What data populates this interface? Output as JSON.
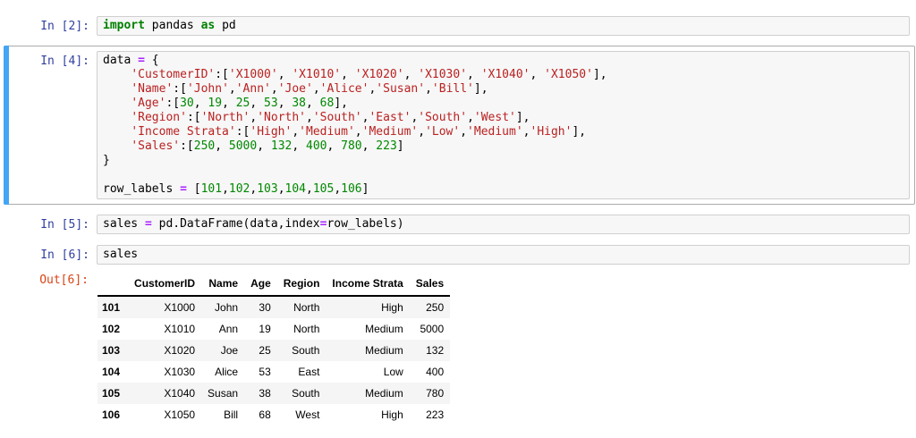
{
  "colors": {
    "in_prompt": "#303f9f",
    "out_prompt": "#d84315",
    "selected_border": "#ababab",
    "selection_bar": "#42a5f5",
    "cell_bg": "#f7f7f7",
    "cell_border": "#cfcfcf",
    "keyword": "#008000",
    "operator": "#aa22ff",
    "string": "#ba2121",
    "number": "#008800",
    "stripe": "#f5f5f5"
  },
  "cells": [
    {
      "prompt": "In [2]:",
      "selected": false,
      "lines": [
        [
          {
            "t": "import",
            "c": "kw"
          },
          {
            "t": " pandas ",
            "c": ""
          },
          {
            "t": "as",
            "c": "kw"
          },
          {
            "t": " pd",
            "c": ""
          }
        ]
      ]
    },
    {
      "prompt": "In [4]:",
      "selected": true,
      "lines": [
        [
          {
            "t": "data ",
            "c": ""
          },
          {
            "t": "=",
            "c": "op"
          },
          {
            "t": " {",
            "c": ""
          }
        ],
        [
          {
            "t": "    ",
            "c": ""
          },
          {
            "t": "'CustomerID'",
            "c": "str"
          },
          {
            "t": ":[",
            "c": ""
          },
          {
            "t": "'X1000'",
            "c": "str"
          },
          {
            "t": ", ",
            "c": ""
          },
          {
            "t": "'X1010'",
            "c": "str"
          },
          {
            "t": ", ",
            "c": ""
          },
          {
            "t": "'X1020'",
            "c": "str"
          },
          {
            "t": ", ",
            "c": ""
          },
          {
            "t": "'X1030'",
            "c": "str"
          },
          {
            "t": ", ",
            "c": ""
          },
          {
            "t": "'X1040'",
            "c": "str"
          },
          {
            "t": ", ",
            "c": ""
          },
          {
            "t": "'X1050'",
            "c": "str"
          },
          {
            "t": "],",
            "c": ""
          }
        ],
        [
          {
            "t": "    ",
            "c": ""
          },
          {
            "t": "'Name'",
            "c": "str"
          },
          {
            "t": ":[",
            "c": ""
          },
          {
            "t": "'John'",
            "c": "str"
          },
          {
            "t": ",",
            "c": ""
          },
          {
            "t": "'Ann'",
            "c": "str"
          },
          {
            "t": ",",
            "c": ""
          },
          {
            "t": "'Joe'",
            "c": "str"
          },
          {
            "t": ",",
            "c": ""
          },
          {
            "t": "'Alice'",
            "c": "str"
          },
          {
            "t": ",",
            "c": ""
          },
          {
            "t": "'Susan'",
            "c": "str"
          },
          {
            "t": ",",
            "c": ""
          },
          {
            "t": "'Bill'",
            "c": "str"
          },
          {
            "t": "],",
            "c": ""
          }
        ],
        [
          {
            "t": "    ",
            "c": ""
          },
          {
            "t": "'Age'",
            "c": "str"
          },
          {
            "t": ":[",
            "c": ""
          },
          {
            "t": "30",
            "c": "num"
          },
          {
            "t": ", ",
            "c": ""
          },
          {
            "t": "19",
            "c": "num"
          },
          {
            "t": ", ",
            "c": ""
          },
          {
            "t": "25",
            "c": "num"
          },
          {
            "t": ", ",
            "c": ""
          },
          {
            "t": "53",
            "c": "num"
          },
          {
            "t": ", ",
            "c": ""
          },
          {
            "t": "38",
            "c": "num"
          },
          {
            "t": ", ",
            "c": ""
          },
          {
            "t": "68",
            "c": "num"
          },
          {
            "t": "],",
            "c": ""
          }
        ],
        [
          {
            "t": "    ",
            "c": ""
          },
          {
            "t": "'Region'",
            "c": "str"
          },
          {
            "t": ":[",
            "c": ""
          },
          {
            "t": "'North'",
            "c": "str"
          },
          {
            "t": ",",
            "c": ""
          },
          {
            "t": "'North'",
            "c": "str"
          },
          {
            "t": ",",
            "c": ""
          },
          {
            "t": "'South'",
            "c": "str"
          },
          {
            "t": ",",
            "c": ""
          },
          {
            "t": "'East'",
            "c": "str"
          },
          {
            "t": ",",
            "c": ""
          },
          {
            "t": "'South'",
            "c": "str"
          },
          {
            "t": ",",
            "c": ""
          },
          {
            "t": "'West'",
            "c": "str"
          },
          {
            "t": "],",
            "c": ""
          }
        ],
        [
          {
            "t": "    ",
            "c": ""
          },
          {
            "t": "'Income Strata'",
            "c": "str"
          },
          {
            "t": ":[",
            "c": ""
          },
          {
            "t": "'High'",
            "c": "str"
          },
          {
            "t": ",",
            "c": ""
          },
          {
            "t": "'Medium'",
            "c": "str"
          },
          {
            "t": ",",
            "c": ""
          },
          {
            "t": "'Medium'",
            "c": "str"
          },
          {
            "t": ",",
            "c": ""
          },
          {
            "t": "'Low'",
            "c": "str"
          },
          {
            "t": ",",
            "c": ""
          },
          {
            "t": "'Medium'",
            "c": "str"
          },
          {
            "t": ",",
            "c": ""
          },
          {
            "t": "'High'",
            "c": "str"
          },
          {
            "t": "],",
            "c": ""
          }
        ],
        [
          {
            "t": "    ",
            "c": ""
          },
          {
            "t": "'Sales'",
            "c": "str"
          },
          {
            "t": ":[",
            "c": ""
          },
          {
            "t": "250",
            "c": "num"
          },
          {
            "t": ", ",
            "c": ""
          },
          {
            "t": "5000",
            "c": "num"
          },
          {
            "t": ", ",
            "c": ""
          },
          {
            "t": "132",
            "c": "num"
          },
          {
            "t": ", ",
            "c": ""
          },
          {
            "t": "400",
            "c": "num"
          },
          {
            "t": ", ",
            "c": ""
          },
          {
            "t": "780",
            "c": "num"
          },
          {
            "t": ", ",
            "c": ""
          },
          {
            "t": "223",
            "c": "num"
          },
          {
            "t": "]",
            "c": ""
          }
        ],
        [
          {
            "t": "}",
            "c": ""
          }
        ],
        [],
        [
          {
            "t": "row_labels ",
            "c": ""
          },
          {
            "t": "=",
            "c": "op"
          },
          {
            "t": " [",
            "c": ""
          },
          {
            "t": "101",
            "c": "num"
          },
          {
            "t": ",",
            "c": ""
          },
          {
            "t": "102",
            "c": "num"
          },
          {
            "t": ",",
            "c": ""
          },
          {
            "t": "103",
            "c": "num"
          },
          {
            "t": ",",
            "c": ""
          },
          {
            "t": "104",
            "c": "num"
          },
          {
            "t": ",",
            "c": ""
          },
          {
            "t": "105",
            "c": "num"
          },
          {
            "t": ",",
            "c": ""
          },
          {
            "t": "106",
            "c": "num"
          },
          {
            "t": "]",
            "c": ""
          }
        ]
      ]
    },
    {
      "prompt": "In [5]:",
      "selected": false,
      "lines": [
        [
          {
            "t": "sales ",
            "c": ""
          },
          {
            "t": "=",
            "c": "op"
          },
          {
            "t": " pd.DataFrame(data,index",
            "c": ""
          },
          {
            "t": "=",
            "c": "op"
          },
          {
            "t": "row_labels)",
            "c": ""
          }
        ]
      ]
    },
    {
      "prompt": "In [6]:",
      "selected": false,
      "lines": [
        [
          {
            "t": "sales",
            "c": ""
          }
        ]
      ]
    }
  ],
  "output": {
    "prompt": "Out[6]:",
    "table": {
      "columns": [
        "CustomerID",
        "Name",
        "Age",
        "Region",
        "Income Strata",
        "Sales"
      ],
      "rows": [
        {
          "index": "101",
          "cells": [
            "X1000",
            "John",
            "30",
            "North",
            "High",
            "250"
          ]
        },
        {
          "index": "102",
          "cells": [
            "X1010",
            "Ann",
            "19",
            "North",
            "Medium",
            "5000"
          ]
        },
        {
          "index": "103",
          "cells": [
            "X1020",
            "Joe",
            "25",
            "South",
            "Medium",
            "132"
          ]
        },
        {
          "index": "104",
          "cells": [
            "X1030",
            "Alice",
            "53",
            "East",
            "Low",
            "400"
          ]
        },
        {
          "index": "105",
          "cells": [
            "X1040",
            "Susan",
            "38",
            "South",
            "Medium",
            "780"
          ]
        },
        {
          "index": "106",
          "cells": [
            "X1050",
            "Bill",
            "68",
            "West",
            "High",
            "223"
          ]
        }
      ]
    }
  }
}
